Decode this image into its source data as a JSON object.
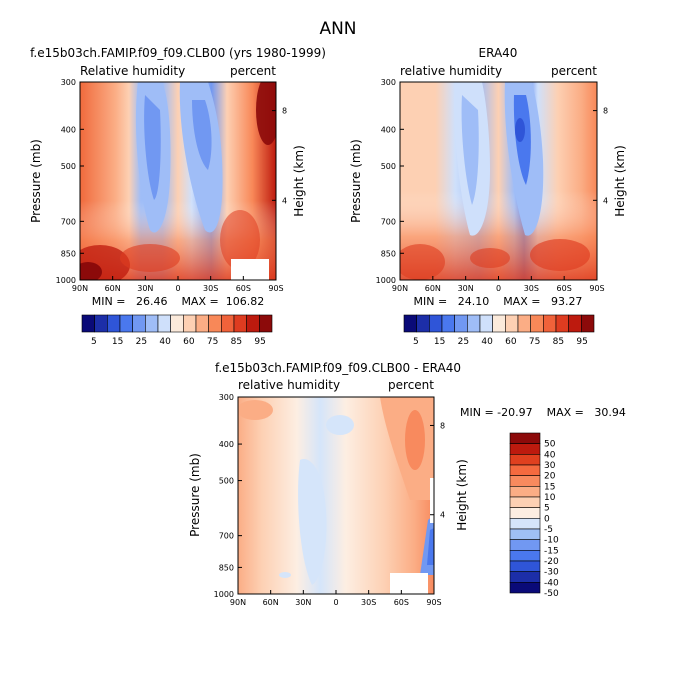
{
  "figure": {
    "title": "ANN"
  },
  "chart_data": [
    {
      "type": "heatmap",
      "title": "f.e15b03ch.FAMIP.f09_f09.CLB00 (yrs 1980-1999)",
      "left_label": "Relative humidity",
      "right_label": "percent",
      "xlabel": "",
      "ylabel": "Pressure (mb)",
      "ylabel_right": "Height (km)",
      "x_ticks": [
        "90N",
        "60N",
        "30N",
        "0",
        "30S",
        "60S",
        "90S"
      ],
      "y_ticks": [
        "300",
        "400",
        "500",
        "700",
        "850",
        "1000"
      ],
      "y_ticks_right": [
        "8",
        "4"
      ],
      "min_max_text": "MIN =   26.46    MAX =  106.82",
      "min": 26.46,
      "max": 106.82,
      "colorbar": {
        "orientation": "horizontal",
        "labels": [
          "5",
          "15",
          "25",
          "40",
          "60",
          "75",
          "85",
          "95"
        ]
      }
    },
    {
      "type": "heatmap",
      "title": "ERA40",
      "left_label": "relative humidity",
      "right_label": "percent",
      "xlabel": "",
      "ylabel": "Pressure (mb)",
      "ylabel_right": "Height (km)",
      "x_ticks": [
        "90N",
        "60N",
        "30N",
        "0",
        "30S",
        "60S",
        "90S"
      ],
      "y_ticks": [
        "300",
        "400",
        "500",
        "700",
        "850",
        "1000"
      ],
      "y_ticks_right": [
        "8",
        "4"
      ],
      "min_max_text": "MIN =   24.10    MAX =   93.27",
      "min": 24.1,
      "max": 93.27,
      "colorbar": {
        "orientation": "horizontal",
        "labels": [
          "5",
          "15",
          "25",
          "40",
          "60",
          "75",
          "85",
          "95"
        ]
      }
    },
    {
      "type": "heatmap",
      "title": "f.e15b03ch.FAMIP.f09_f09.CLB00 - ERA40",
      "left_label": "relative humidity",
      "right_label": "percent",
      "xlabel": "",
      "ylabel": "Pressure (mb)",
      "ylabel_right": "Height (km)",
      "x_ticks": [
        "90N",
        "60N",
        "30N",
        "0",
        "30S",
        "60S",
        "90S"
      ],
      "y_ticks": [
        "300",
        "400",
        "500",
        "700",
        "850",
        "1000"
      ],
      "y_ticks_right": [
        "8",
        "4"
      ],
      "min_max_text": "MIN = -20.97    MAX =   30.94",
      "min": -20.97,
      "max": 30.94,
      "colorbar": {
        "orientation": "vertical",
        "labels": [
          "50",
          "40",
          "30",
          "20",
          "15",
          "10",
          "5",
          "0",
          "-5",
          "-10",
          "-15",
          "-20",
          "-30",
          "-40",
          "-50"
        ]
      }
    }
  ],
  "colors": {
    "abs_scale": [
      "#0a0a78",
      "#1c2ea8",
      "#2f55d8",
      "#4a78ee",
      "#7198f2",
      "#9fbdf7",
      "#cfe0fb",
      "#fbeadb",
      "#fdd0b3",
      "#fbad85",
      "#f88858",
      "#f0623a",
      "#de3c20",
      "#bd1a0e",
      "#8c0a0a"
    ],
    "diff_scale": [
      "#8c0a0a",
      "#bd1a0e",
      "#e0401f",
      "#f56a3f",
      "#f88a5e",
      "#fbad85",
      "#fdd0b3",
      "#fdeee2",
      "#d5e5fa",
      "#9fc0f5",
      "#7198f2",
      "#4a78ee",
      "#2f55d8",
      "#1c2ea8",
      "#0a0a78"
    ]
  }
}
